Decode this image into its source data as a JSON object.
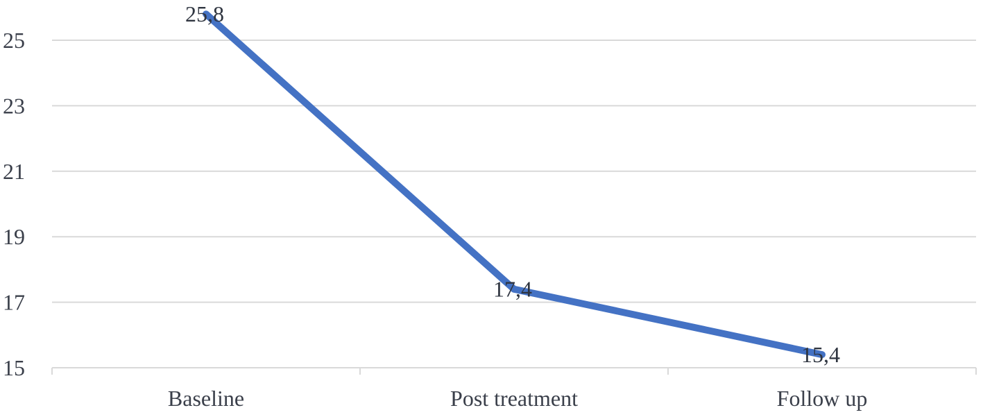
{
  "chart_data": {
    "type": "line",
    "categories": [
      "Baseline",
      "Post treatment",
      "Follow up"
    ],
    "series": [
      {
        "values": [
          25.8,
          17.4,
          15.4
        ]
      }
    ],
    "data_labels": [
      "25,8",
      "17,4",
      "15,4"
    ],
    "y_ticks": [
      15,
      17,
      19,
      21,
      23,
      25
    ],
    "y_tick_labels": [
      "15",
      "17",
      "19",
      "21",
      "23",
      "25"
    ],
    "ylim": [
      15,
      26
    ],
    "grid": true,
    "legend": "none",
    "line_color": "#4472c4",
    "grid_color": "#d9d9d9"
  }
}
